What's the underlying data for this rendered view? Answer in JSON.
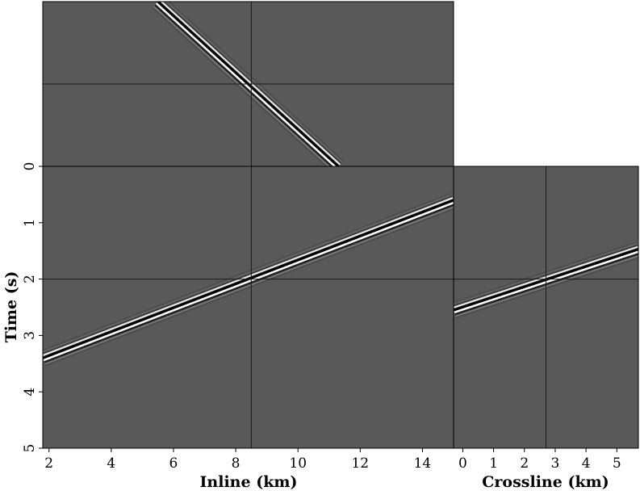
{
  "chart_data": {
    "type": "seismic-cube-sections",
    "background_gray": "#595959",
    "event_color_positive": "#000000",
    "event_color_negative": "#ffffff",
    "crosshair_color": "#1a1a1a",
    "crosshair": {
      "inline_km": 8.5,
      "time_s": 2.0,
      "crossline_km": 2.7
    },
    "time_axis": {
      "label": "Time (s)",
      "range": [
        0,
        5
      ],
      "ticks": [
        "0",
        "1",
        "2",
        "3",
        "4",
        "5"
      ]
    },
    "inline_axis": {
      "label": "Inline (km)",
      "range": [
        1.8,
        15.0
      ],
      "ticks": [
        "2",
        "4",
        "6",
        "8",
        "10",
        "12",
        "14"
      ]
    },
    "crossline_axis": {
      "label": "Crossline (km)",
      "range": [
        -0.3,
        5.7
      ],
      "ticks": [
        "0",
        "1",
        "2",
        "3",
        "4",
        "5"
      ]
    },
    "panels": [
      {
        "name": "inline-section",
        "x_axis": "inline",
        "y_axis": "time",
        "event_line": {
          "x": [
            1.8,
            15.0
          ],
          "y": [
            3.4,
            0.6
          ]
        }
      },
      {
        "name": "crossline-section",
        "x_axis": "crossline",
        "y_axis": "time",
        "event_line": {
          "x": [
            -0.3,
            5.7
          ],
          "y": [
            2.55,
            1.47
          ]
        }
      },
      {
        "name": "time-slice",
        "x_axis": "inline",
        "y_axis": "crossline",
        "crossline_range": [
          5.7,
          -0.3
        ],
        "event_line": {
          "x": [
            5.5,
            11.3
          ],
          "y": [
            5.7,
            -0.3
          ]
        }
      }
    ]
  }
}
